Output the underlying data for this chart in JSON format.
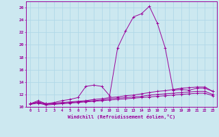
{
  "xlabel": "Windchill (Refroidissement éolien,°C)",
  "background_color": "#cce8f0",
  "grid_color": "#b0d8e8",
  "line_color": "#990099",
  "xlim": [
    -0.5,
    23.5
  ],
  "ylim": [
    10,
    27
  ],
  "yticks": [
    10,
    12,
    14,
    16,
    18,
    20,
    22,
    24,
    26
  ],
  "xticks": [
    0,
    1,
    2,
    3,
    4,
    5,
    6,
    7,
    8,
    9,
    10,
    11,
    12,
    13,
    14,
    15,
    16,
    17,
    18,
    19,
    20,
    21,
    22,
    23
  ],
  "series": [
    [
      10.5,
      11.0,
      10.5,
      10.7,
      11.0,
      11.2,
      11.5,
      13.3,
      13.5,
      13.3,
      11.8,
      19.5,
      22.2,
      24.5,
      25.0,
      26.2,
      23.5,
      19.5,
      12.7,
      12.8,
      12.7,
      13.0,
      13.0,
      12.5
    ],
    [
      10.5,
      10.8,
      10.5,
      10.6,
      10.7,
      10.8,
      10.9,
      11.0,
      11.2,
      11.3,
      11.5,
      11.6,
      11.8,
      11.9,
      12.1,
      12.3,
      12.5,
      12.6,
      12.8,
      13.0,
      13.1,
      13.2,
      13.2,
      12.5
    ],
    [
      10.5,
      10.7,
      10.4,
      10.5,
      10.6,
      10.7,
      10.8,
      10.9,
      11.0,
      11.1,
      11.3,
      11.4,
      11.5,
      11.6,
      11.7,
      11.9,
      12.0,
      12.1,
      12.2,
      12.3,
      12.4,
      12.5,
      12.5,
      12.0
    ],
    [
      10.4,
      10.6,
      10.3,
      10.4,
      10.5,
      10.6,
      10.7,
      10.8,
      10.9,
      11.0,
      11.1,
      11.2,
      11.3,
      11.4,
      11.5,
      11.6,
      11.7,
      11.8,
      11.9,
      12.0,
      12.1,
      12.2,
      12.2,
      11.8
    ]
  ]
}
